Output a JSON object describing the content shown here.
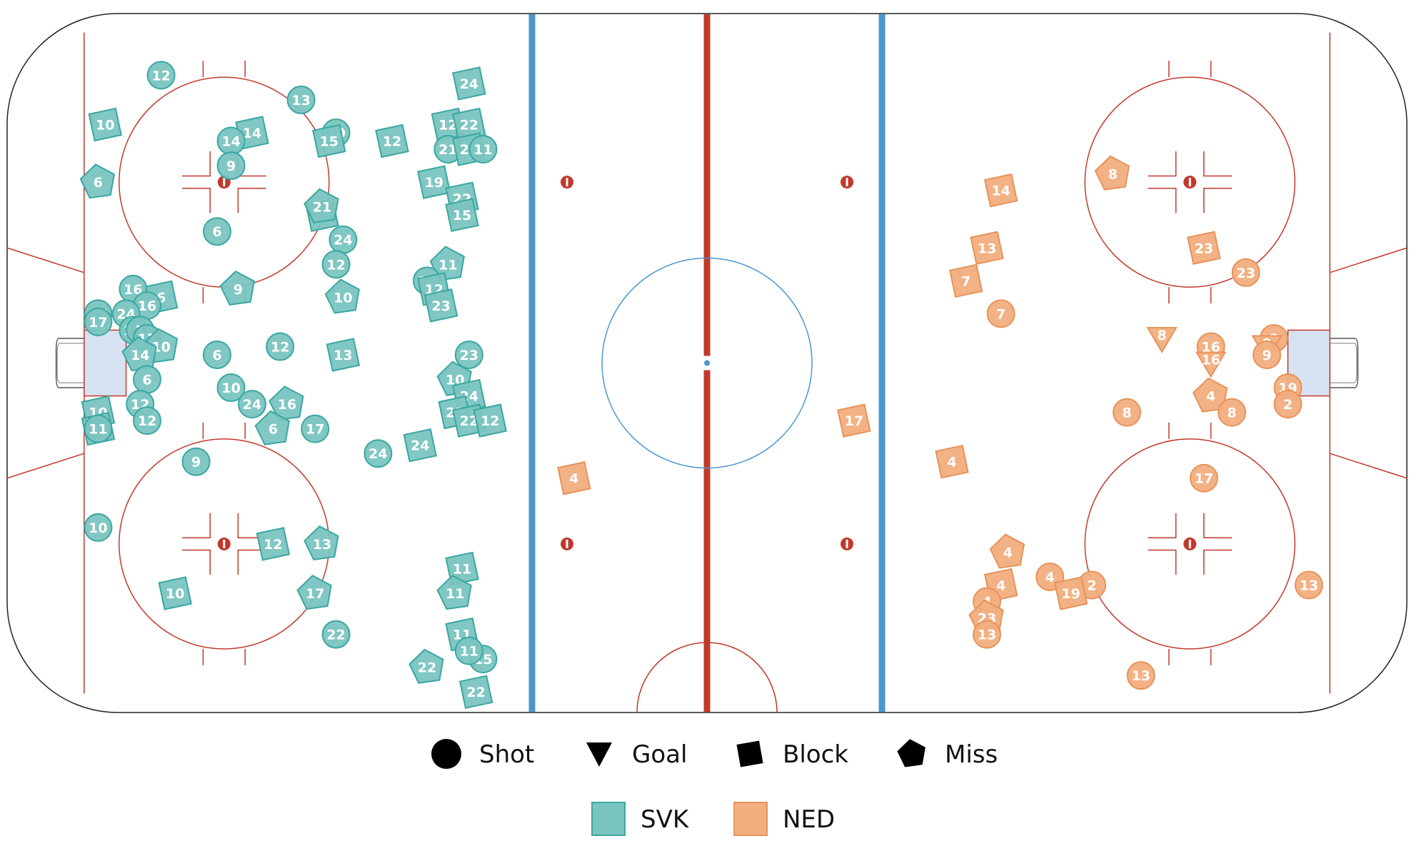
{
  "chart_data": {
    "type": "scatter",
    "description_free": true,
    "colors": {
      "SVK": "#7ac4c0",
      "NED": "#f2ae7e",
      "SVK_stroke": "#3aa7a1",
      "NED_stroke": "#e8935a"
    },
    "rink": {
      "x_range": [
        -100,
        100
      ],
      "y_range": [
        -42.5,
        42.5
      ]
    },
    "legend": {
      "types": [
        {
          "key": "shot",
          "label": "Shot"
        },
        {
          "key": "goal",
          "label": "Goal"
        },
        {
          "key": "block",
          "label": "Block"
        },
        {
          "key": "miss",
          "label": "Miss"
        }
      ],
      "teams": [
        {
          "key": "SVK",
          "label": "SVK"
        },
        {
          "key": "NED",
          "label": "NED"
        }
      ]
    },
    "events": [
      {
        "team": "SVK",
        "type": "shot",
        "num": "12",
        "x": -78,
        "y": 35
      },
      {
        "team": "SVK",
        "type": "block",
        "num": "10",
        "x": -86,
        "y": 29
      },
      {
        "team": "SVK",
        "type": "shot",
        "num": "13",
        "x": -58,
        "y": 32
      },
      {
        "team": "SVK",
        "type": "block",
        "num": "14",
        "x": -65,
        "y": 28
      },
      {
        "team": "SVK",
        "type": "shot",
        "num": "14",
        "x": -68,
        "y": 27
      },
      {
        "team": "SVK",
        "type": "shot",
        "num": "10",
        "x": -53,
        "y": 28
      },
      {
        "team": "SVK",
        "type": "block",
        "num": "15",
        "x": -54,
        "y": 27
      },
      {
        "team": "SVK",
        "type": "block",
        "num": "12",
        "x": -45,
        "y": 27
      },
      {
        "team": "SVK",
        "type": "block",
        "num": "24",
        "x": -34,
        "y": 34
      },
      {
        "team": "SVK",
        "type": "block",
        "num": "12",
        "x": -37,
        "y": 29
      },
      {
        "team": "SVK",
        "type": "block",
        "num": "22",
        "x": -34,
        "y": 29
      },
      {
        "team": "SVK",
        "type": "shot",
        "num": "21",
        "x": -37,
        "y": 26
      },
      {
        "team": "SVK",
        "type": "block",
        "num": "24",
        "x": -34,
        "y": 26
      },
      {
        "team": "SVK",
        "type": "shot",
        "num": "11",
        "x": -32,
        "y": 26
      },
      {
        "team": "SVK",
        "type": "shot",
        "num": "9",
        "x": -68,
        "y": 24
      },
      {
        "team": "SVK",
        "type": "miss",
        "num": "6",
        "x": -87,
        "y": 22
      },
      {
        "team": "SVK",
        "type": "block",
        "num": "19",
        "x": -39,
        "y": 22
      },
      {
        "team": "SVK",
        "type": "block",
        "num": "22",
        "x": -35,
        "y": 20
      },
      {
        "team": "SVK",
        "type": "block",
        "num": "18",
        "x": -55,
        "y": 18
      },
      {
        "team": "SVK",
        "type": "miss",
        "num": "21",
        "x": -55,
        "y": 19
      },
      {
        "team": "SVK",
        "type": "block",
        "num": "15",
        "x": -35,
        "y": 18
      },
      {
        "team": "SVK",
        "type": "shot",
        "num": "6",
        "x": -70,
        "y": 16
      },
      {
        "team": "SVK",
        "type": "shot",
        "num": "24",
        "x": -52,
        "y": 15
      },
      {
        "team": "SVK",
        "type": "shot",
        "num": "12",
        "x": -53,
        "y": 12
      },
      {
        "team": "SVK",
        "type": "miss",
        "num": "11",
        "x": -37,
        "y": 12
      },
      {
        "team": "SVK",
        "type": "shot",
        "num": "10",
        "x": -40,
        "y": 10
      },
      {
        "team": "SVK",
        "type": "block",
        "num": "12",
        "x": -39,
        "y": 9
      },
      {
        "team": "SVK",
        "type": "miss",
        "num": "9",
        "x": -67,
        "y": 9
      },
      {
        "team": "SVK",
        "type": "miss",
        "num": "10",
        "x": -52,
        "y": 8
      },
      {
        "team": "SVK",
        "type": "block",
        "num": "6",
        "x": -78,
        "y": 8
      },
      {
        "team": "SVK",
        "type": "block",
        "num": "23",
        "x": -38,
        "y": 7
      },
      {
        "team": "SVK",
        "type": "shot",
        "num": "16",
        "x": -82,
        "y": 9
      },
      {
        "team": "SVK",
        "type": "shot",
        "num": "16",
        "x": -80,
        "y": 7
      },
      {
        "team": "SVK",
        "type": "shot",
        "num": "17",
        "x": -87,
        "y": 6
      },
      {
        "team": "SVK",
        "type": "shot",
        "num": "24",
        "x": -83,
        "y": 6
      },
      {
        "team": "SVK",
        "type": "shot",
        "num": "17",
        "x": -87,
        "y": 5
      },
      {
        "team": "SVK",
        "type": "shot",
        "num": "17",
        "x": -82,
        "y": 4
      },
      {
        "team": "SVK",
        "type": "shot",
        "num": "7",
        "x": -81,
        "y": 4
      },
      {
        "team": "SVK",
        "type": "shot",
        "num": "17",
        "x": -80,
        "y": 3
      },
      {
        "team": "SVK",
        "type": "miss",
        "num": "10",
        "x": -78,
        "y": 2
      },
      {
        "team": "SVK",
        "type": "shot",
        "num": "12",
        "x": -61,
        "y": 2
      },
      {
        "team": "SVK",
        "type": "block",
        "num": "13",
        "x": -52,
        "y": 1
      },
      {
        "team": "SVK",
        "type": "shot",
        "num": "6",
        "x": -70,
        "y": 1
      },
      {
        "team": "SVK",
        "type": "miss",
        "num": "14",
        "x": -81,
        "y": 1
      },
      {
        "team": "SVK",
        "type": "shot",
        "num": "6",
        "x": -80,
        "y": -2
      },
      {
        "team": "SVK",
        "type": "shot",
        "num": "23",
        "x": -34,
        "y": 1
      },
      {
        "team": "SVK",
        "type": "miss",
        "num": "10",
        "x": -36,
        "y": -2
      },
      {
        "team": "SVK",
        "type": "block",
        "num": "24",
        "x": -34,
        "y": -4
      },
      {
        "team": "SVK",
        "type": "shot",
        "num": "10",
        "x": -68,
        "y": -3
      },
      {
        "team": "SVK",
        "type": "shot",
        "num": "24",
        "x": -65,
        "y": -5
      },
      {
        "team": "SVK",
        "type": "miss",
        "num": "16",
        "x": -60,
        "y": -5
      },
      {
        "team": "SVK",
        "type": "block",
        "num": "22",
        "x": -36,
        "y": -6
      },
      {
        "team": "SVK",
        "type": "block",
        "num": "22",
        "x": -34,
        "y": -7
      },
      {
        "team": "SVK",
        "type": "block",
        "num": "12",
        "x": -31,
        "y": -7
      },
      {
        "team": "SVK",
        "type": "block",
        "num": "10",
        "x": -87,
        "y": -6
      },
      {
        "team": "SVK",
        "type": "shot",
        "num": "12",
        "x": -81,
        "y": -5
      },
      {
        "team": "SVK",
        "type": "shot",
        "num": "12",
        "x": -80,
        "y": -7
      },
      {
        "team": "SVK",
        "type": "block",
        "num": "11",
        "x": -87,
        "y": -8
      },
      {
        "team": "SVK",
        "type": "shot",
        "num": "11",
        "x": -87,
        "y": -8
      },
      {
        "team": "SVK",
        "type": "miss",
        "num": "6",
        "x": -62,
        "y": -8
      },
      {
        "team": "SVK",
        "type": "shot",
        "num": "17",
        "x": -56,
        "y": -8
      },
      {
        "team": "SVK",
        "type": "block",
        "num": "24",
        "x": -41,
        "y": -10
      },
      {
        "team": "SVK",
        "type": "shot",
        "num": "24",
        "x": -47,
        "y": -11
      },
      {
        "team": "SVK",
        "type": "shot",
        "num": "9",
        "x": -73,
        "y": -12
      },
      {
        "team": "SVK",
        "type": "shot",
        "num": "10",
        "x": -87,
        "y": -20
      },
      {
        "team": "SVK",
        "type": "block",
        "num": "12",
        "x": -62,
        "y": -22
      },
      {
        "team": "SVK",
        "type": "miss",
        "num": "13",
        "x": -55,
        "y": -22
      },
      {
        "team": "SVK",
        "type": "block",
        "num": "11",
        "x": -35,
        "y": -25
      },
      {
        "team": "SVK",
        "type": "miss",
        "num": "11",
        "x": -36,
        "y": -28
      },
      {
        "team": "SVK",
        "type": "miss",
        "num": "17",
        "x": -56,
        "y": -28
      },
      {
        "team": "SVK",
        "type": "block",
        "num": "10",
        "x": -76,
        "y": -28
      },
      {
        "team": "SVK",
        "type": "block",
        "num": "11",
        "x": -35,
        "y": -33
      },
      {
        "team": "SVK",
        "type": "shot",
        "num": "22",
        "x": -53,
        "y": -33
      },
      {
        "team": "SVK",
        "type": "shot",
        "num": "15",
        "x": -32,
        "y": -36
      },
      {
        "team": "SVK",
        "type": "shot",
        "num": "11",
        "x": -34,
        "y": -35
      },
      {
        "team": "SVK",
        "type": "miss",
        "num": "22",
        "x": -40,
        "y": -37
      },
      {
        "team": "SVK",
        "type": "block",
        "num": "22",
        "x": -33,
        "y": -40
      },
      {
        "team": "NED",
        "type": "miss",
        "num": "8",
        "x": 58,
        "y": 23
      },
      {
        "team": "NED",
        "type": "block",
        "num": "14",
        "x": 42,
        "y": 21
      },
      {
        "team": "NED",
        "type": "block",
        "num": "13",
        "x": 40,
        "y": 14
      },
      {
        "team": "NED",
        "type": "block",
        "num": "23",
        "x": 71,
        "y": 14
      },
      {
        "team": "NED",
        "type": "shot",
        "num": "23",
        "x": 77,
        "y": 11
      },
      {
        "team": "NED",
        "type": "block",
        "num": "7",
        "x": 37,
        "y": 10
      },
      {
        "team": "NED",
        "type": "shot",
        "num": "7",
        "x": 42,
        "y": 6
      },
      {
        "team": "NED",
        "type": "goal",
        "num": "8",
        "x": 65,
        "y": 3
      },
      {
        "team": "NED",
        "type": "shot",
        "num": "8",
        "x": 81,
        "y": 3
      },
      {
        "team": "NED",
        "type": "goal",
        "num": "9",
        "x": 80,
        "y": 2
      },
      {
        "team": "NED",
        "type": "shot",
        "num": "9",
        "x": 80,
        "y": 1
      },
      {
        "team": "NED",
        "type": "shot",
        "num": "16",
        "x": 72,
        "y": 2
      },
      {
        "team": "NED",
        "type": "goal",
        "num": "16",
        "x": 72,
        "y": 0
      },
      {
        "team": "NED",
        "type": "shot",
        "num": "19",
        "x": 83,
        "y": -3
      },
      {
        "team": "NED",
        "type": "shot",
        "num": "2",
        "x": 83,
        "y": -5
      },
      {
        "team": "NED",
        "type": "miss",
        "num": "4",
        "x": 72,
        "y": -4
      },
      {
        "team": "NED",
        "type": "shot",
        "num": "8",
        "x": 60,
        "y": -6
      },
      {
        "team": "NED",
        "type": "shot",
        "num": "8",
        "x": 75,
        "y": -6
      },
      {
        "team": "NED",
        "type": "block",
        "num": "17",
        "x": 21,
        "y": -7
      },
      {
        "team": "NED",
        "type": "block",
        "num": "4",
        "x": 35,
        "y": -12
      },
      {
        "team": "NED",
        "type": "block",
        "num": "4",
        "x": -19,
        "y": -14
      },
      {
        "team": "NED",
        "type": "shot",
        "num": "17",
        "x": 71,
        "y": -14
      },
      {
        "team": "NED",
        "type": "miss",
        "num": "4",
        "x": 43,
        "y": -23
      },
      {
        "team": "NED",
        "type": "block",
        "num": "4",
        "x": 42,
        "y": -27
      },
      {
        "team": "NED",
        "type": "shot",
        "num": "4",
        "x": 49,
        "y": -26
      },
      {
        "team": "NED",
        "type": "shot",
        "num": "2",
        "x": 55,
        "y": -27
      },
      {
        "team": "NED",
        "type": "block",
        "num": "19",
        "x": 52,
        "y": -28
      },
      {
        "team": "NED",
        "type": "shot",
        "num": "4",
        "x": 40,
        "y": -29
      },
      {
        "team": "NED",
        "type": "shot",
        "num": "13",
        "x": 86,
        "y": -27
      },
      {
        "team": "NED",
        "type": "miss",
        "num": "23",
        "x": 40,
        "y": -31
      },
      {
        "team": "NED",
        "type": "shot",
        "num": "13",
        "x": 40,
        "y": -33
      },
      {
        "team": "NED",
        "type": "shot",
        "num": "13",
        "x": 62,
        "y": -38
      }
    ]
  }
}
